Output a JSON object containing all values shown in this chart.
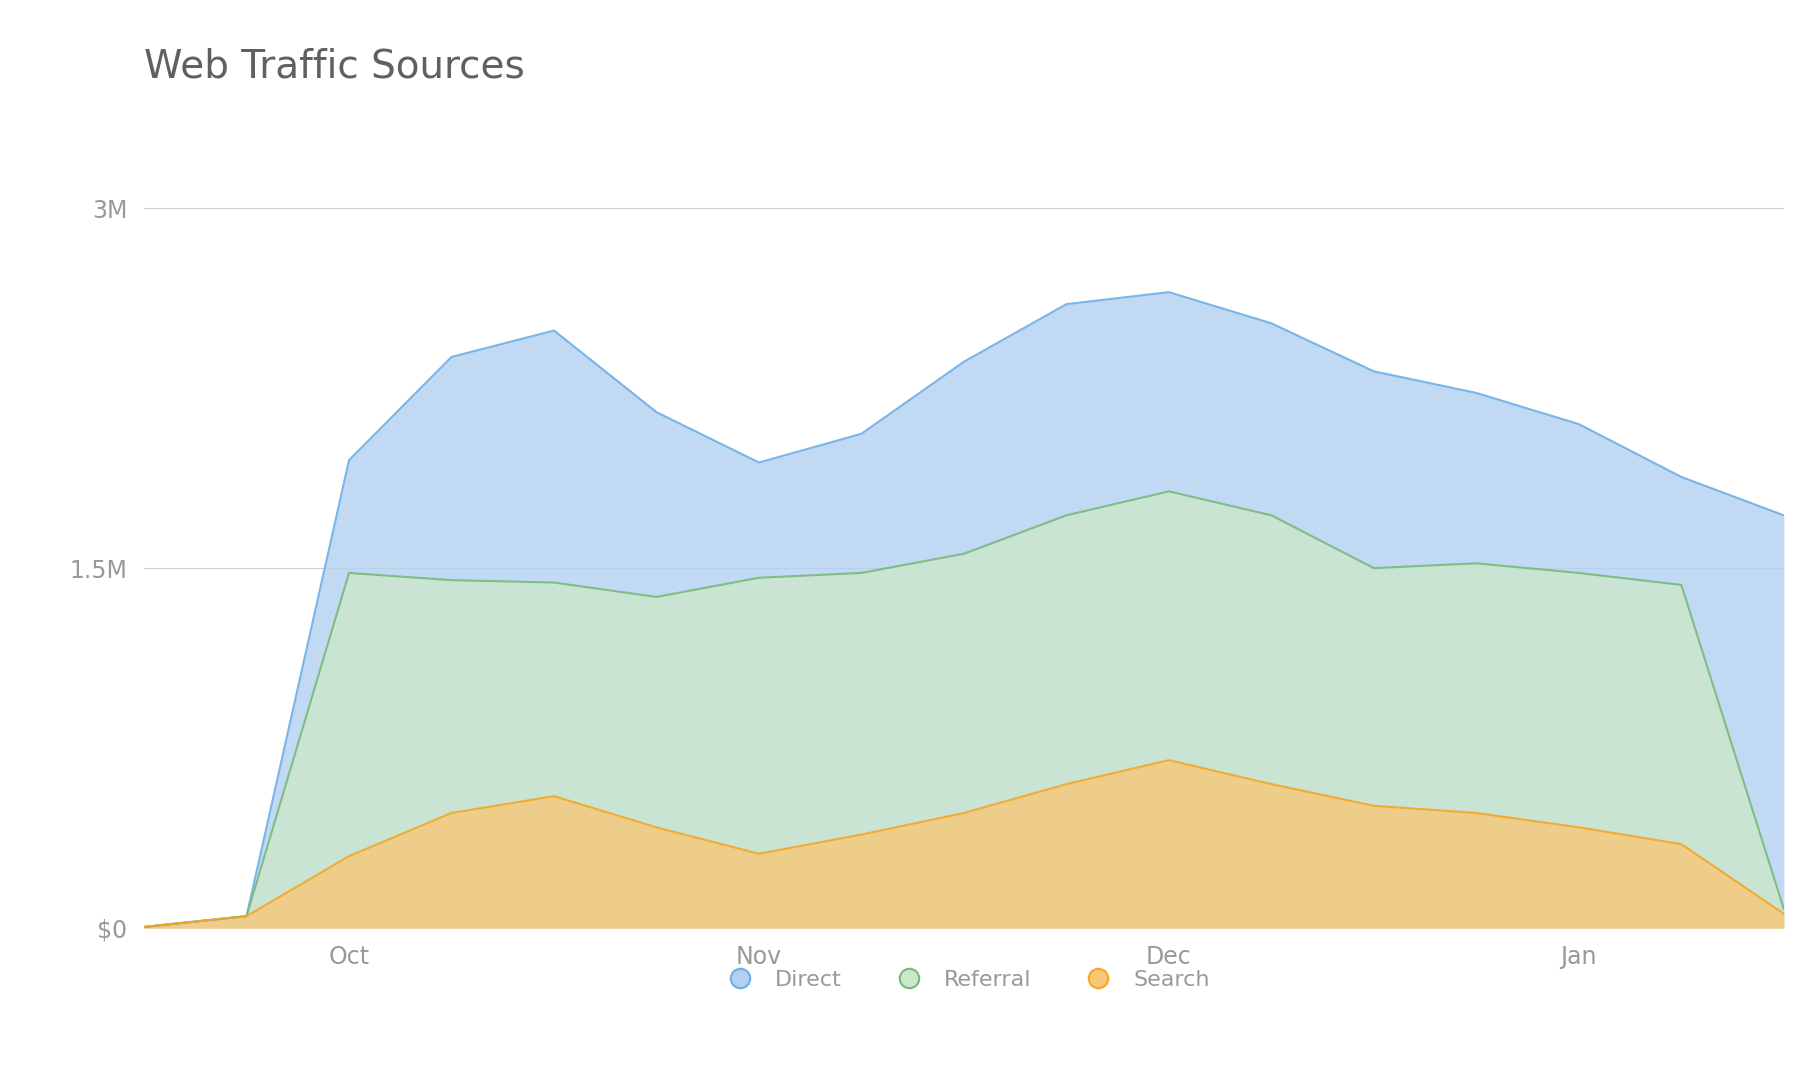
{
  "title": "Web Traffic Sources",
  "title_fontsize": 28,
  "title_color": "#606060",
  "background_color": "#ffffff",
  "x_labels": [
    "Oct",
    "Nov",
    "Dec",
    "Jan"
  ],
  "x_tick_positions": [
    2,
    6,
    10,
    14
  ],
  "yticks": [
    0,
    1500000,
    3000000
  ],
  "ytick_labels": [
    "$0",
    "1.5M",
    "3M"
  ],
  "ylim": [
    0,
    3400000
  ],
  "xlim": [
    0,
    16
  ],
  "x": [
    0,
    1,
    2,
    3,
    4,
    5,
    6,
    7,
    8,
    9,
    10,
    11,
    12,
    13,
    14,
    15,
    16
  ],
  "search": [
    5000,
    50000,
    300000,
    480000,
    550000,
    420000,
    310000,
    390000,
    480000,
    600000,
    700000,
    600000,
    510000,
    480000,
    420000,
    350000,
    60000
  ],
  "referral": [
    5000,
    50000,
    1480000,
    1450000,
    1440000,
    1380000,
    1460000,
    1480000,
    1560000,
    1720000,
    1820000,
    1720000,
    1500000,
    1520000,
    1480000,
    1430000,
    80000
  ],
  "direct": [
    5000,
    50000,
    1950000,
    2380000,
    2490000,
    2150000,
    1940000,
    2060000,
    2360000,
    2600000,
    2650000,
    2520000,
    2320000,
    2230000,
    2100000,
    1880000,
    1720000
  ],
  "series": {
    "Search": {
      "color_fill": "#f8c878",
      "color_line": "#f5a623",
      "alpha": 0.8
    },
    "Referral": {
      "color_fill": "#cce8cc",
      "color_line": "#7ab87a",
      "alpha": 0.8
    },
    "Direct": {
      "color_fill": "#b3d0f0",
      "color_line": "#6baee8",
      "alpha": 0.8
    }
  },
  "legend_labels": [
    "Direct",
    "Referral",
    "Search"
  ],
  "legend_colors_fill": [
    "#b3d0f0",
    "#cce8cc",
    "#f8c878"
  ],
  "legend_colors_line": [
    "#6baee8",
    "#7ab87a",
    "#f5a623"
  ],
  "grid_color": "#cccccc",
  "axis_label_color": "#999999",
  "axis_label_fontsize": 17
}
